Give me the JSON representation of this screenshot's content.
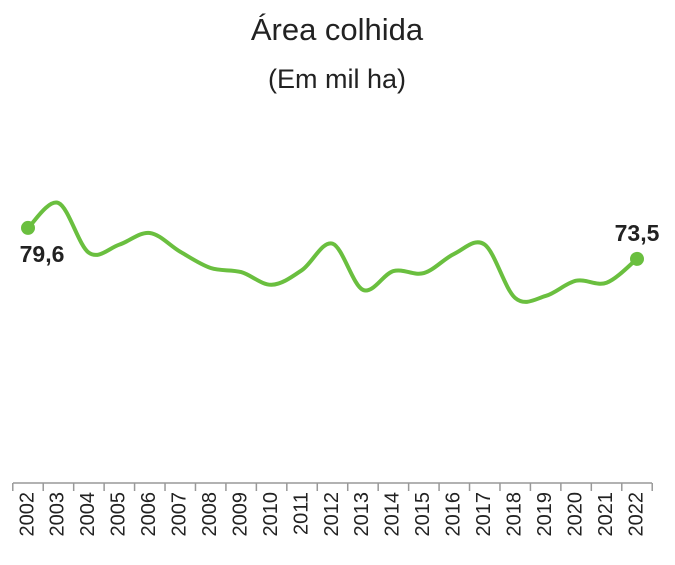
{
  "chart_data": {
    "type": "line",
    "title": "Área colhida",
    "subtitle": "(Em mil ha)",
    "categories": [
      "2002",
      "2003",
      "2004",
      "2005",
      "2006",
      "2007",
      "2008",
      "2009",
      "2010",
      "2011",
      "2012",
      "2013",
      "2014",
      "2015",
      "2016",
      "2017",
      "2018",
      "2019",
      "2020",
      "2021",
      "2022"
    ],
    "series": [
      {
        "name": "Área colhida",
        "color": "#6abf3f",
        "values": [
          79.6,
          84.5,
          74.7,
          76.3,
          78.6,
          74.9,
          71.7,
          70.9,
          68.4,
          71.3,
          76.5,
          67.4,
          71.1,
          70.7,
          74.5,
          76.3,
          65.8,
          66.2,
          69.2,
          68.8,
          73.5
        ],
        "value_labels": [
          "79,6",
          null,
          null,
          null,
          null,
          null,
          null,
          null,
          null,
          null,
          null,
          null,
          null,
          null,
          null,
          null,
          null,
          null,
          null,
          null,
          "73,5"
        ]
      }
    ]
  }
}
